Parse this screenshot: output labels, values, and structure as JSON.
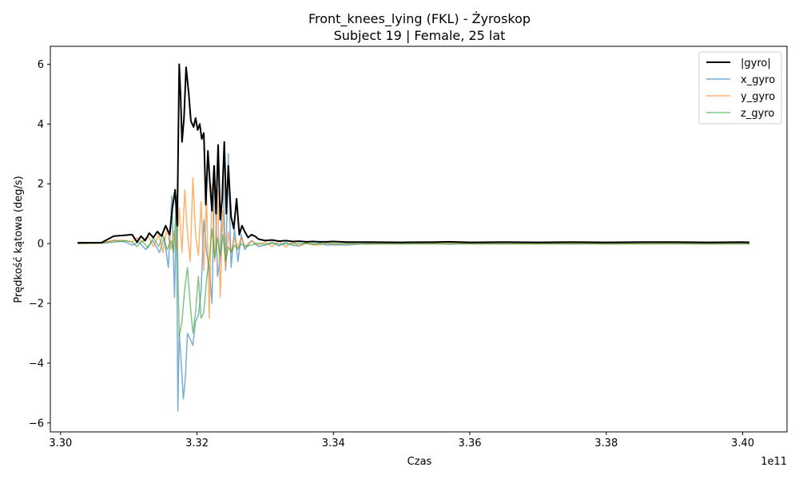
{
  "chart_data": {
    "type": "line",
    "title_line1": "Front_knees_lying (FKL) - Żyroskop",
    "title_line2": "Subject 19 | Female, 25 lat",
    "xlabel": "Czas",
    "ylabel": "Prędkość kątowa (deg/s)",
    "x_offset_label": "1e11",
    "xlim": [
      3.2985,
      3.4065
    ],
    "ylim": [
      -6.3,
      6.6
    ],
    "xticks": [
      3.3,
      3.32,
      3.34,
      3.36,
      3.38,
      3.4
    ],
    "xtick_labels": [
      "3.30",
      "3.32",
      "3.34",
      "3.36",
      "3.38",
      "3.40"
    ],
    "yticks": [
      -6,
      -4,
      -2,
      0,
      2,
      4,
      6
    ],
    "ytick_labels": [
      "−6",
      "−4",
      "−2",
      "0",
      "2",
      "4",
      "6"
    ],
    "legend_position": "top-right",
    "series": [
      {
        "name": "|gyro|",
        "color": "#000000",
        "x": [
          3.3025,
          3.306,
          3.3078,
          3.3095,
          3.3105,
          3.3112,
          3.3118,
          3.3124,
          3.313,
          3.3136,
          3.3142,
          3.3148,
          3.3154,
          3.316,
          3.3164,
          3.3168,
          3.3171,
          3.3174,
          3.3176,
          3.3178,
          3.3181,
          3.3184,
          3.3188,
          3.3191,
          3.3195,
          3.3198,
          3.3201,
          3.3204,
          3.3207,
          3.321,
          3.3213,
          3.3216,
          3.3219,
          3.3222,
          3.3225,
          3.3228,
          3.3231,
          3.3234,
          3.3237,
          3.324,
          3.3243,
          3.3246,
          3.325,
          3.3254,
          3.3258,
          3.3262,
          3.3266,
          3.327,
          3.3275,
          3.328,
          3.3285,
          3.329,
          3.33,
          3.331,
          3.332,
          3.333,
          3.334,
          3.335,
          3.336,
          3.337,
          3.338,
          3.339,
          3.34,
          3.341,
          3.342,
          3.343,
          3.345,
          3.35,
          3.355,
          3.357,
          3.36,
          3.365,
          3.37,
          3.375,
          3.38,
          3.385,
          3.39,
          3.395,
          3.4,
          3.401
        ],
        "y": [
          0.03,
          0.03,
          0.25,
          0.28,
          0.3,
          0.05,
          0.25,
          0.1,
          0.35,
          0.2,
          0.4,
          0.25,
          0.6,
          0.3,
          1.2,
          1.8,
          0.6,
          6.0,
          4.9,
          3.4,
          4.2,
          5.9,
          5.0,
          4.1,
          3.9,
          4.2,
          3.8,
          4.0,
          3.5,
          3.7,
          1.3,
          3.1,
          2.0,
          1.1,
          2.6,
          1.0,
          3.3,
          0.8,
          1.5,
          3.4,
          1.0,
          2.6,
          0.9,
          0.5,
          1.5,
          0.3,
          0.6,
          0.4,
          0.2,
          0.3,
          0.25,
          0.15,
          0.1,
          0.12,
          0.08,
          0.1,
          0.07,
          0.08,
          0.06,
          0.07,
          0.06,
          0.06,
          0.07,
          0.06,
          0.05,
          0.05,
          0.05,
          0.04,
          0.05,
          0.06,
          0.04,
          0.05,
          0.04,
          0.05,
          0.04,
          0.05,
          0.05,
          0.04,
          0.05,
          0.04
        ]
      },
      {
        "name": "x_gyro",
        "color": "#1f77b4",
        "x": [
          3.3025,
          3.306,
          3.308,
          3.3095,
          3.3105,
          3.3115,
          3.3125,
          3.3135,
          3.3145,
          3.3152,
          3.3158,
          3.3163,
          3.3167,
          3.317,
          3.3172,
          3.3174,
          3.3177,
          3.318,
          3.3183,
          3.3186,
          3.319,
          3.3194,
          3.3198,
          3.3202,
          3.3206,
          3.321,
          3.3214,
          3.3218,
          3.3222,
          3.3226,
          3.323,
          3.3234,
          3.3238,
          3.3242,
          3.3246,
          3.325,
          3.3255,
          3.326,
          3.3265,
          3.327,
          3.328,
          3.329,
          3.33,
          3.331,
          3.332,
          3.333,
          3.334,
          3.335,
          3.336,
          3.337,
          3.338,
          3.339,
          3.34,
          3.342,
          3.345,
          3.35,
          3.355,
          3.357,
          3.36,
          3.365,
          3.37,
          3.375,
          3.38,
          3.385,
          3.39,
          3.395,
          3.4,
          3.401
        ],
        "y": [
          0.0,
          0.02,
          0.1,
          0.05,
          -0.05,
          0.05,
          -0.2,
          0.1,
          -0.3,
          0.2,
          -0.8,
          1.6,
          -1.8,
          1.2,
          -5.6,
          -3.0,
          -4.0,
          -5.2,
          -4.5,
          -3.0,
          -3.2,
          -3.4,
          -2.6,
          -2.4,
          -1.6,
          0.8,
          -0.3,
          -0.8,
          -2.0,
          2.6,
          -1.1,
          -0.5,
          2.5,
          -0.9,
          3.0,
          -0.8,
          0.5,
          -0.6,
          0.3,
          -0.2,
          0.1,
          -0.1,
          -0.05,
          0.05,
          -0.08,
          0.04,
          -0.06,
          -0.08,
          0.03,
          -0.04,
          0.02,
          -0.05,
          -0.04,
          -0.05,
          0.01,
          0.0,
          0.01,
          -0.02,
          0.01,
          0.0,
          0.01,
          -0.01,
          0.01,
          0.0,
          0.01,
          0.0,
          0.01,
          0.0
        ]
      },
      {
        "name": "y_gyro",
        "color": "#ff7f0e",
        "x": [
          3.3025,
          3.306,
          3.308,
          3.3095,
          3.3105,
          3.3112,
          3.312,
          3.3128,
          3.3136,
          3.3144,
          3.315,
          3.3156,
          3.3162,
          3.3166,
          3.317,
          3.3174,
          3.3178,
          3.3182,
          3.3186,
          3.319,
          3.3194,
          3.3198,
          3.3202,
          3.3206,
          3.321,
          3.3214,
          3.3218,
          3.3222,
          3.3226,
          3.323,
          3.3234,
          3.3238,
          3.3242,
          3.3246,
          3.325,
          3.3255,
          3.326,
          3.3265,
          3.327,
          3.328,
          3.329,
          3.33,
          3.331,
          3.332,
          3.333,
          3.334,
          3.335,
          3.336,
          3.337,
          3.338,
          3.339,
          3.34,
          3.342,
          3.345,
          3.35,
          3.355,
          3.36,
          3.365,
          3.37,
          3.375,
          3.38,
          3.385,
          3.39,
          3.395,
          3.4,
          3.401
        ],
        "y": [
          0.0,
          0.02,
          0.12,
          0.1,
          0.05,
          0.2,
          0.05,
          0.25,
          -0.1,
          0.3,
          -0.3,
          0.5,
          -0.2,
          0.4,
          -0.2,
          1.2,
          -0.3,
          1.8,
          0.4,
          -0.6,
          2.2,
          0.3,
          -0.4,
          1.4,
          -0.9,
          1.6,
          -2.5,
          2.0,
          -0.6,
          1.8,
          -1.8,
          1.1,
          -0.8,
          0.4,
          -0.3,
          0.2,
          -0.15,
          0.2,
          -0.1,
          0.1,
          -0.05,
          0.05,
          -0.1,
          0.08,
          -0.12,
          0.05,
          -0.08,
          0.02,
          -0.04,
          -0.05,
          0.03,
          -0.03,
          0.01,
          -0.02,
          0.01,
          0.0,
          0.01,
          -0.01,
          0.0,
          0.01,
          -0.01,
          0.0,
          0.01,
          0.0,
          0.01,
          0.0
        ]
      },
      {
        "name": "z_gyro",
        "color": "#2ca02c",
        "x": [
          3.3025,
          3.306,
          3.308,
          3.3095,
          3.3105,
          3.3112,
          3.312,
          3.3128,
          3.3136,
          3.3144,
          3.315,
          3.3156,
          3.3162,
          3.3166,
          3.317,
          3.3174,
          3.3178,
          3.3182,
          3.3186,
          3.319,
          3.3194,
          3.3198,
          3.3202,
          3.3206,
          3.321,
          3.3214,
          3.3218,
          3.3222,
          3.3226,
          3.323,
          3.3234,
          3.3238,
          3.3242,
          3.3246,
          3.325,
          3.3255,
          3.326,
          3.3265,
          3.327,
          3.328,
          3.329,
          3.33,
          3.331,
          3.332,
          3.334,
          3.336,
          3.338,
          3.34,
          3.345,
          3.35,
          3.355,
          3.36,
          3.365,
          3.37,
          3.375,
          3.38,
          3.385,
          3.39,
          3.395,
          3.4,
          3.401
        ],
        "y": [
          0.0,
          0.01,
          0.05,
          0.1,
          0.05,
          -0.1,
          0.1,
          -0.15,
          0.2,
          -0.1,
          0.3,
          -0.2,
          0.1,
          -0.3,
          1.6,
          -3.1,
          -2.6,
          -1.5,
          -0.8,
          -2.0,
          -3.0,
          -2.3,
          -1.1,
          -2.5,
          -2.3,
          -1.2,
          -0.5,
          0.5,
          -0.5,
          0.2,
          -0.4,
          0.3,
          -0.6,
          -0.1,
          -0.3,
          -0.05,
          -0.2,
          0.0,
          -0.1,
          -0.05,
          0.02,
          -0.03,
          0.01,
          -0.02,
          -0.01,
          0.0,
          -0.01,
          0.0,
          -0.01,
          -0.01,
          -0.01,
          -0.01,
          -0.01,
          -0.01,
          -0.01,
          -0.01,
          -0.01,
          -0.01,
          -0.01,
          -0.01,
          -0.01
        ]
      }
    ]
  }
}
